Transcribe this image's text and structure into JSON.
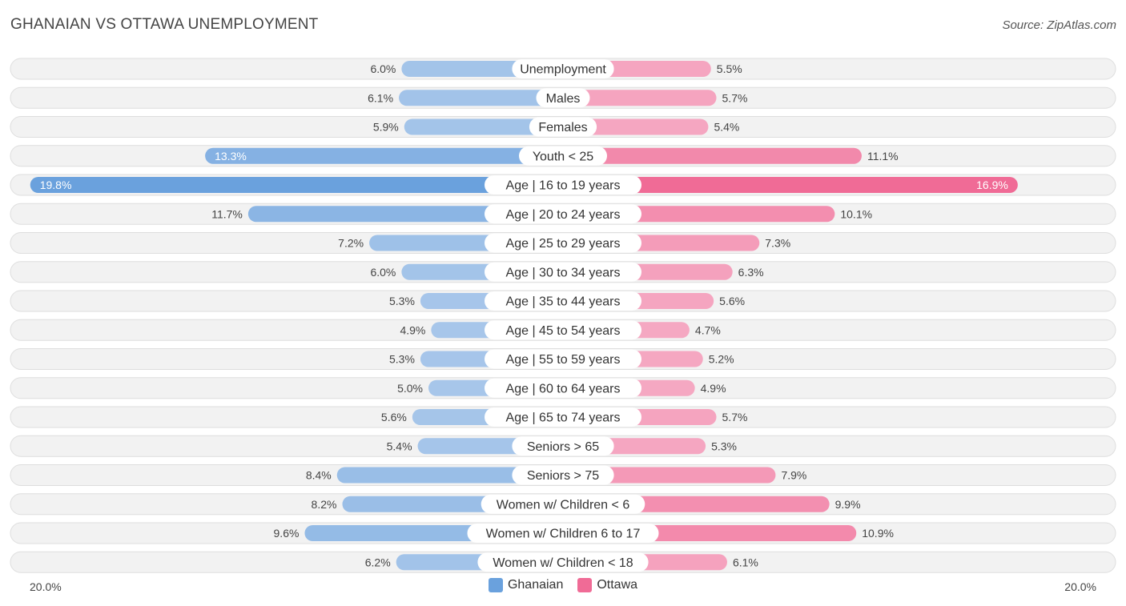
{
  "header": {
    "title": "GHANAIAN VS OTTAWA UNEMPLOYMENT",
    "source": "Source: ZipAtlas.com"
  },
  "colors": {
    "ghanaian_light": "#a7c6ea",
    "ghanaian_strong": "#6aa1dd",
    "ottawa_light": "#f5a8c2",
    "ottawa_strong": "#f06b96",
    "row_bg": "#f2f2f2",
    "row_border": "#dedede"
  },
  "legend": {
    "ghanaian": "Ghanaian",
    "ottawa": "Ottawa"
  },
  "axis": {
    "left_label": "20.0%",
    "right_label": "20.0%"
  },
  "chart_data": {
    "type": "bar",
    "orientation": "horizontal-diverging",
    "title": "GHANAIAN VS OTTAWA UNEMPLOYMENT",
    "xlim": [
      0,
      20
    ],
    "categories": [
      "Unemployment",
      "Males",
      "Females",
      "Youth < 25",
      "Age | 16 to 19 years",
      "Age | 20 to 24 years",
      "Age | 25 to 29 years",
      "Age | 30 to 34 years",
      "Age | 35 to 44 years",
      "Age | 45 to 54 years",
      "Age | 55 to 59 years",
      "Age | 60 to 64 years",
      "Age | 65 to 74 years",
      "Seniors > 65",
      "Seniors > 75",
      "Women w/ Children < 6",
      "Women w/ Children 6 to 17",
      "Women w/ Children < 18"
    ],
    "series": [
      {
        "name": "Ghanaian",
        "values": [
          6.0,
          6.1,
          5.9,
          13.3,
          19.8,
          11.7,
          7.2,
          6.0,
          5.3,
          4.9,
          5.3,
          5.0,
          5.6,
          5.4,
          8.4,
          8.2,
          9.6,
          6.2
        ],
        "labels": [
          "6.0%",
          "6.1%",
          "5.9%",
          "13.3%",
          "19.8%",
          "11.7%",
          "7.2%",
          "6.0%",
          "5.3%",
          "4.9%",
          "5.3%",
          "5.0%",
          "5.6%",
          "5.4%",
          "8.4%",
          "8.2%",
          "9.6%",
          "6.2%"
        ]
      },
      {
        "name": "Ottawa",
        "values": [
          5.5,
          5.7,
          5.4,
          11.1,
          16.9,
          10.1,
          7.3,
          6.3,
          5.6,
          4.7,
          5.2,
          4.9,
          5.7,
          5.3,
          7.9,
          9.9,
          10.9,
          6.1
        ],
        "labels": [
          "5.5%",
          "5.7%",
          "5.4%",
          "11.1%",
          "16.9%",
          "10.1%",
          "7.3%",
          "6.3%",
          "5.6%",
          "4.7%",
          "5.2%",
          "4.9%",
          "5.7%",
          "5.3%",
          "7.9%",
          "9.9%",
          "10.9%",
          "6.1%"
        ]
      }
    ]
  }
}
